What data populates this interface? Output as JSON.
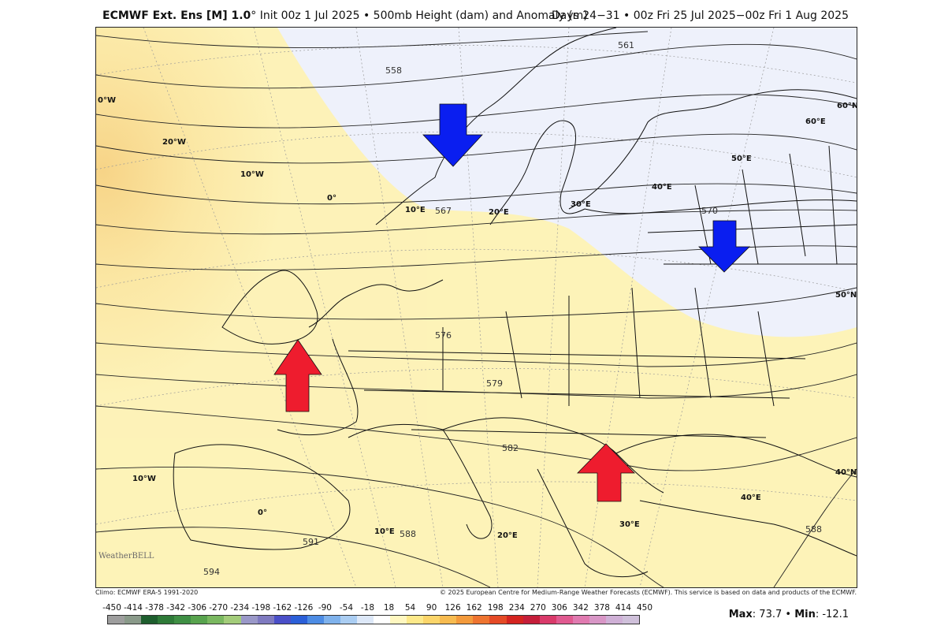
{
  "header": {
    "model": "ECMWF Ext. Ens [M] 1.0",
    "degree": "°",
    "product": " Init 00z 1 Jul 2025 • 500mb Height (dam) and Anomaly (m)",
    "valid": "Days 24−31 • 00z Fri 25 Jul 2025−00z Fri 1 Aug 2025"
  },
  "contours": [
    "558",
    "561",
    "567",
    "570",
    "576",
    "579",
    "582",
    "588",
    "591",
    "594",
    "588"
  ],
  "geo_labels": [
    "0°W",
    "20°W",
    "10°W",
    "0°",
    "10°E",
    "20°E",
    "30°E",
    "40°E",
    "50°E",
    "60°E",
    "60°N",
    "50°N",
    "40°N",
    "40°E",
    "30°E",
    "20°E",
    "10°E",
    "0°",
    "10°W"
  ],
  "arrows": [
    {
      "name": "blue-arrow-scandinavia",
      "color": "#0a1ef0",
      "direction": "down"
    },
    {
      "name": "blue-arrow-russia",
      "color": "#0a1ef0",
      "direction": "down"
    },
    {
      "name": "red-arrow-france",
      "color": "#ee1c2e",
      "direction": "up"
    },
    {
      "name": "red-arrow-romania",
      "color": "#ee1c2e",
      "direction": "up"
    }
  ],
  "footer": {
    "climo": "Climo: ECMWF ERA-5 1991-2020",
    "copyright": "© 2025 European Centre for Medium-Range Weather Forecasts (ECMWF). This service is based on data and products of the ECMWF.",
    "logo": "WeatherBELL"
  },
  "colorbar": {
    "ticks": [
      "-450",
      "-414",
      "-378",
      "-342",
      "-306",
      "-270",
      "-234",
      "-198",
      "-162",
      "-126",
      "-90",
      "-54",
      "-18",
      "18",
      "54",
      "90",
      "126",
      "162",
      "198",
      "234",
      "270",
      "306",
      "342",
      "378",
      "414",
      "450"
    ],
    "colors": [
      "#9e9e9e",
      "#8a9a8a",
      "#1e5e2e",
      "#2e7a38",
      "#3f8f44",
      "#58a34e",
      "#7ab860",
      "#a3cc7a",
      "#9a98c8",
      "#7f7ac0",
      "#4a4fc8",
      "#2b5fd8",
      "#4d8ce4",
      "#7fb2ec",
      "#aacdf2",
      "#dde8f8",
      "#ffffff",
      "#fff7c0",
      "#fde98a",
      "#fbd56a",
      "#f7bb50",
      "#f39a3c",
      "#ee7430",
      "#e54a26",
      "#d42420",
      "#c51e3a",
      "#d93a6a",
      "#e05a90",
      "#e07ab0",
      "#d896c6",
      "#cfb0d6",
      "#cfc0da"
    ]
  },
  "stats": {
    "max_label": "Max",
    "max": ": 73.7 • ",
    "min_label": "Min",
    "min": ": -12.1"
  }
}
